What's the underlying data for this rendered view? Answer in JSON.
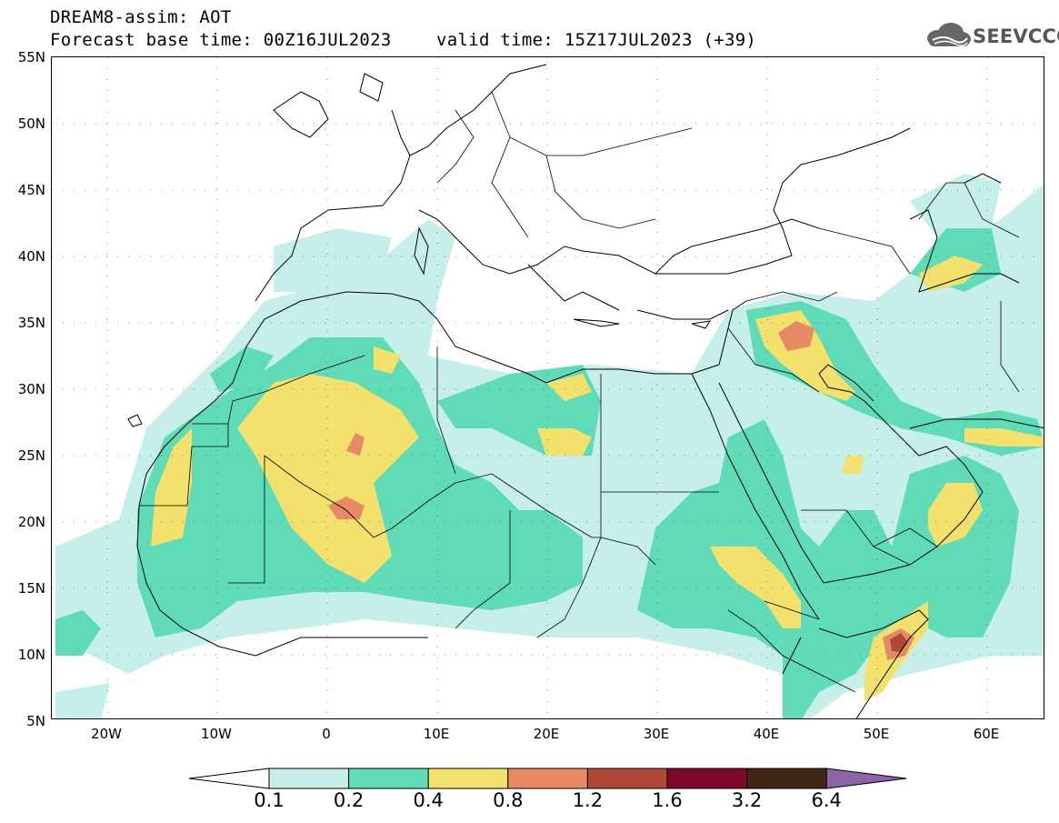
{
  "header": {
    "title": "DREAM8-assim: AOT",
    "base_time": "Forecast base time: 00Z16JUL2023",
    "valid_time": "valid time: 15Z17JUL2023 (+39)"
  },
  "logo": {
    "text": "SEEVCCC",
    "icon": "cloud-logo-icon"
  },
  "map": {
    "lat_labels": [
      "55N",
      "50N",
      "45N",
      "40N",
      "35N",
      "30N",
      "25N",
      "20N",
      "15N",
      "10N",
      "5N"
    ],
    "lon_labels": [
      "20W",
      "10W",
      "0",
      "10E",
      "20E",
      "30E",
      "40E",
      "50E",
      "60E"
    ],
    "lat_range": [
      5,
      55
    ],
    "lon_range": [
      -25,
      65
    ],
    "fill_colors": {
      "c01": "#c6efea",
      "c02": "#5fdcb7",
      "c04": "#f4e16d",
      "c08": "#e68a66",
      "c12": "#b0483a"
    }
  },
  "colorbar": {
    "levels": [
      "0.1",
      "0.2",
      "0.4",
      "0.8",
      "1.2",
      "1.6",
      "3.2",
      "6.4"
    ],
    "colors": [
      "#ffffff",
      "#c6efea",
      "#5fdcb7",
      "#f4e16d",
      "#e68a66",
      "#b0483a",
      "#7e0a28",
      "#3f2615",
      "#8e63a8"
    ]
  }
}
